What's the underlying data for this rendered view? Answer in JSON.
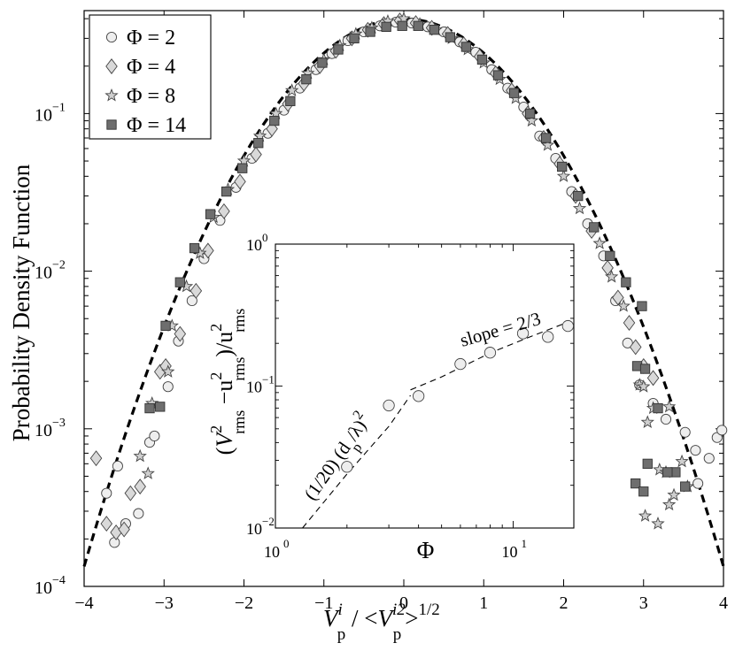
{
  "chart_data": [
    {
      "type": "scatter",
      "x_scale": "linear",
      "y_scale": "log",
      "xlim": [
        -4,
        4
      ],
      "ylim": [
        0.0001,
        0.45
      ],
      "ylabel": "Probability Density Function",
      "xlabel": {
        "base": "V",
        "sub": "p",
        "sup": "i",
        "sep": " / <",
        "base2": "V",
        "sub2": "p",
        "sup2": "i2",
        "close": ">",
        "power": "1/2"
      },
      "x_ticks": [
        -4,
        -3,
        -2,
        -1,
        0,
        1,
        2,
        3,
        4
      ],
      "x_tick_labels": [
        "−4",
        "−3",
        "−2",
        "−1",
        "0",
        "1",
        "2",
        "3",
        "4"
      ],
      "y_ticks": [
        {
          "value": 0.1,
          "base": "10",
          "exp": "−1"
        },
        {
          "value": 0.01,
          "base": "10",
          "exp": "−2"
        },
        {
          "value": 0.001,
          "base": "10",
          "exp": "−3"
        },
        {
          "value": 0.0001,
          "base": "10",
          "exp": "−4"
        }
      ],
      "legend_position": "top-left",
      "reference_curve": {
        "style": "dashed",
        "shape": "gaussian",
        "mean": 0,
        "std": 1
      },
      "series": [
        {
          "name": "Φ = 2",
          "marker": "circle",
          "fill": "#eeeeee",
          "points": [
            [
              -3.72,
              0.00039
            ],
            [
              -3.58,
              0.00058
            ],
            [
              -3.62,
              0.00019
            ],
            [
              -3.48,
              0.00025
            ],
            [
              -3.32,
              0.00029
            ],
            [
              -3.18,
              0.00082
            ],
            [
              -3.12,
              0.0009
            ],
            [
              -2.95,
              0.00185
            ],
            [
              -2.82,
              0.0036
            ],
            [
              -2.65,
              0.0065
            ],
            [
              -2.5,
              0.012
            ],
            [
              -2.3,
              0.021
            ],
            [
              -2.1,
              0.034
            ],
            [
              -1.9,
              0.052
            ],
            [
              -1.7,
              0.075
            ],
            [
              -1.5,
              0.105
            ],
            [
              -1.3,
              0.145
            ],
            [
              -1.1,
              0.19
            ],
            [
              -0.9,
              0.24
            ],
            [
              -0.7,
              0.29
            ],
            [
              -0.5,
              0.33
            ],
            [
              -0.3,
              0.36
            ],
            [
              -0.1,
              0.38
            ],
            [
              0.1,
              0.375
            ],
            [
              0.3,
              0.355
            ],
            [
              0.5,
              0.33
            ],
            [
              0.7,
              0.285
            ],
            [
              0.9,
              0.245
            ],
            [
              1.1,
              0.19
            ],
            [
              1.3,
              0.145
            ],
            [
              1.5,
              0.11
            ],
            [
              1.7,
              0.072
            ],
            [
              1.9,
              0.052
            ],
            [
              2.1,
              0.032
            ],
            [
              2.3,
              0.02
            ],
            [
              2.5,
              0.0125
            ],
            [
              2.65,
              0.0065
            ],
            [
              2.8,
              0.0035
            ],
            [
              2.95,
              0.0019
            ],
            [
              3.12,
              0.00145
            ],
            [
              3.28,
              0.00115
            ],
            [
              3.52,
              0.00095
            ],
            [
              3.65,
              0.00073
            ],
            [
              3.82,
              0.00065
            ],
            [
              3.92,
              0.00088
            ],
            [
              3.98,
              0.00098
            ],
            [
              3.68,
              0.00045
            ]
          ]
        },
        {
          "name": "Φ = 4",
          "marker": "diamond",
          "fill": "#d9d9d9",
          "points": [
            [
              -3.85,
              0.00065
            ],
            [
              -3.72,
              0.00025
            ],
            [
              -3.6,
              0.00022
            ],
            [
              -3.5,
              0.00023
            ],
            [
              -3.42,
              0.00039
            ],
            [
              -3.3,
              0.00043
            ],
            [
              -3.05,
              0.0023
            ],
            [
              -2.98,
              0.0025
            ],
            [
              -2.8,
              0.004
            ],
            [
              -2.6,
              0.0075
            ],
            [
              -2.45,
              0.0135
            ],
            [
              -2.25,
              0.024
            ],
            [
              -2.05,
              0.037
            ],
            [
              -1.85,
              0.055
            ],
            [
              -1.65,
              0.08
            ],
            [
              -1.45,
              0.115
            ],
            [
              -1.25,
              0.155
            ],
            [
              -1.05,
              0.2
            ],
            [
              -0.85,
              0.25
            ],
            [
              -0.65,
              0.3
            ],
            [
              -0.45,
              0.34
            ],
            [
              -0.25,
              0.37
            ],
            [
              -0.05,
              0.39
            ],
            [
              0.15,
              0.375
            ],
            [
              0.35,
              0.35
            ],
            [
              0.55,
              0.32
            ],
            [
              0.75,
              0.275
            ],
            [
              0.95,
              0.23
            ],
            [
              1.15,
              0.18
            ],
            [
              1.35,
              0.14
            ],
            [
              1.55,
              0.1
            ],
            [
              1.75,
              0.07
            ],
            [
              1.95,
              0.048
            ],
            [
              2.15,
              0.03
            ],
            [
              2.35,
              0.018
            ],
            [
              2.55,
              0.0105
            ],
            [
              2.68,
              0.0068
            ],
            [
              2.82,
              0.0047
            ],
            [
              2.9,
              0.0033
            ],
            [
              3.0,
              0.0025
            ],
            [
              3.12,
              0.0021
            ]
          ]
        },
        {
          "name": "Φ = 8",
          "marker": "star",
          "fill": "#cfcfcf",
          "points": [
            [
              -3.3,
              0.00067
            ],
            [
              -3.2,
              0.00052
            ],
            [
              -3.15,
              0.00145
            ],
            [
              -2.95,
              0.0023
            ],
            [
              -2.9,
              0.0045
            ],
            [
              -2.72,
              0.008
            ],
            [
              -2.55,
              0.013
            ],
            [
              -2.38,
              0.022
            ],
            [
              -2.2,
              0.033
            ],
            [
              -2.0,
              0.05
            ],
            [
              -1.8,
              0.072
            ],
            [
              -1.6,
              0.1
            ],
            [
              -1.4,
              0.14
            ],
            [
              -1.2,
              0.18
            ],
            [
              -1.0,
              0.22
            ],
            [
              -0.8,
              0.27
            ],
            [
              -0.6,
              0.32
            ],
            [
              -0.4,
              0.35
            ],
            [
              -0.2,
              0.385
            ],
            [
              0.0,
              0.4
            ],
            [
              0.2,
              0.37
            ],
            [
              0.4,
              0.34
            ],
            [
              0.6,
              0.3
            ],
            [
              0.8,
              0.255
            ],
            [
              1.0,
              0.21
            ],
            [
              1.2,
              0.165
            ],
            [
              1.4,
              0.125
            ],
            [
              1.6,
              0.09
            ],
            [
              1.8,
              0.063
            ],
            [
              2.0,
              0.04
            ],
            [
              2.2,
              0.025
            ],
            [
              2.45,
              0.015
            ],
            [
              2.6,
              0.0092
            ],
            [
              2.75,
              0.006
            ],
            [
              2.95,
              0.0019
            ],
            [
              3.0,
              0.00185
            ],
            [
              3.05,
              0.0011
            ],
            [
              3.12,
              0.00135
            ],
            [
              3.32,
              0.00138
            ],
            [
              3.48,
              0.00062
            ],
            [
              3.38,
              0.00038
            ],
            [
              3.2,
              0.00055
            ],
            [
              3.02,
              0.00028
            ],
            [
              3.18,
              0.00025
            ],
            [
              3.55,
              0.00043
            ],
            [
              3.32,
              0.00033
            ],
            [
              3.28,
              0.00053
            ]
          ]
        },
        {
          "name": "Φ = 14",
          "marker": "square",
          "fill": "#6e6e6e",
          "points": [
            [
              -3.18,
              0.00135
            ],
            [
              -3.05,
              0.00138
            ],
            [
              -2.98,
              0.0045
            ],
            [
              -2.8,
              0.0085
            ],
            [
              -2.62,
              0.014
            ],
            [
              -2.42,
              0.023
            ],
            [
              -2.22,
              0.032
            ],
            [
              -2.02,
              0.045
            ],
            [
              -1.82,
              0.065
            ],
            [
              -1.62,
              0.09
            ],
            [
              -1.42,
              0.12
            ],
            [
              -1.22,
              0.165
            ],
            [
              -1.02,
              0.21
            ],
            [
              -0.82,
              0.255
            ],
            [
              -0.62,
              0.3
            ],
            [
              -0.42,
              0.33
            ],
            [
              -0.22,
              0.355
            ],
            [
              -0.02,
              0.36
            ],
            [
              0.18,
              0.36
            ],
            [
              0.38,
              0.34
            ],
            [
              0.58,
              0.305
            ],
            [
              0.78,
              0.265
            ],
            [
              0.98,
              0.22
            ],
            [
              1.18,
              0.175
            ],
            [
              1.38,
              0.135
            ],
            [
              1.58,
              0.1
            ],
            [
              1.78,
              0.07
            ],
            [
              1.98,
              0.046
            ],
            [
              2.18,
              0.03
            ],
            [
              2.38,
              0.019
            ],
            [
              2.58,
              0.0125
            ],
            [
              2.78,
              0.0085
            ],
            [
              2.98,
              0.006
            ],
            [
              2.92,
              0.0025
            ],
            [
              3.02,
              0.0024
            ],
            [
              3.18,
              0.00135
            ],
            [
              3.4,
              0.00053
            ],
            [
              3.3,
              0.00053
            ],
            [
              3.52,
              0.00043
            ],
            [
              3.05,
              0.0006
            ],
            [
              2.9,
              0.00045
            ],
            [
              3.0,
              0.0004
            ]
          ]
        }
      ]
    },
    {
      "type": "scatter",
      "x_scale": "log",
      "y_scale": "log",
      "xlim": [
        1,
        18
      ],
      "ylim": [
        0.01,
        1
      ],
      "xlabel": "Φ",
      "ylabel": {
        "open": "(",
        "base": "V",
        "sup": "2",
        "sub": "rms",
        "minus": " −u",
        "sup2": "2",
        "sub2": "rms",
        "close": ")/u",
        "sup3": "2",
        "sub3": "rms"
      },
      "x_ticks": [
        {
          "value": 1,
          "base": "10",
          "exp": "0"
        },
        {
          "value": 10,
          "base": "10",
          "exp": "1"
        }
      ],
      "y_ticks": [
        {
          "value": 1,
          "base": "10",
          "exp": "0"
        },
        {
          "value": 0.1,
          "base": "10",
          "exp": "−1"
        },
        {
          "value": 0.01,
          "base": "10",
          "exp": "−2"
        }
      ],
      "points": [
        [
          2,
          0.027
        ],
        [
          3,
          0.073
        ],
        [
          4,
          0.085
        ],
        [
          6,
          0.143
        ],
        [
          8,
          0.172
        ],
        [
          11,
          0.235
        ],
        [
          14,
          0.222
        ],
        [
          17,
          0.265
        ]
      ],
      "annotations": [
        {
          "text_pre": "(1/20) (d",
          "sub": "p",
          "text_post": "/λ)",
          "sup": "2"
        },
        {
          "text": "slope = 2/3"
        }
      ],
      "fits": [
        {
          "style": "dashed",
          "form": "(1/20)(d_p/λ)^2",
          "points": [
            [
              1.3,
              0.01
            ],
            [
              2,
              0.024
            ],
            [
              3,
              0.052
            ],
            [
              3.7,
              0.086
            ]
          ]
        },
        {
          "style": "dashed",
          "form": "slope = 2/3",
          "points": [
            [
              3.7,
              0.094
            ],
            [
              5,
              0.116
            ],
            [
              8,
              0.171
            ],
            [
              12,
              0.225
            ],
            [
              17,
              0.282
            ]
          ]
        }
      ]
    }
  ]
}
